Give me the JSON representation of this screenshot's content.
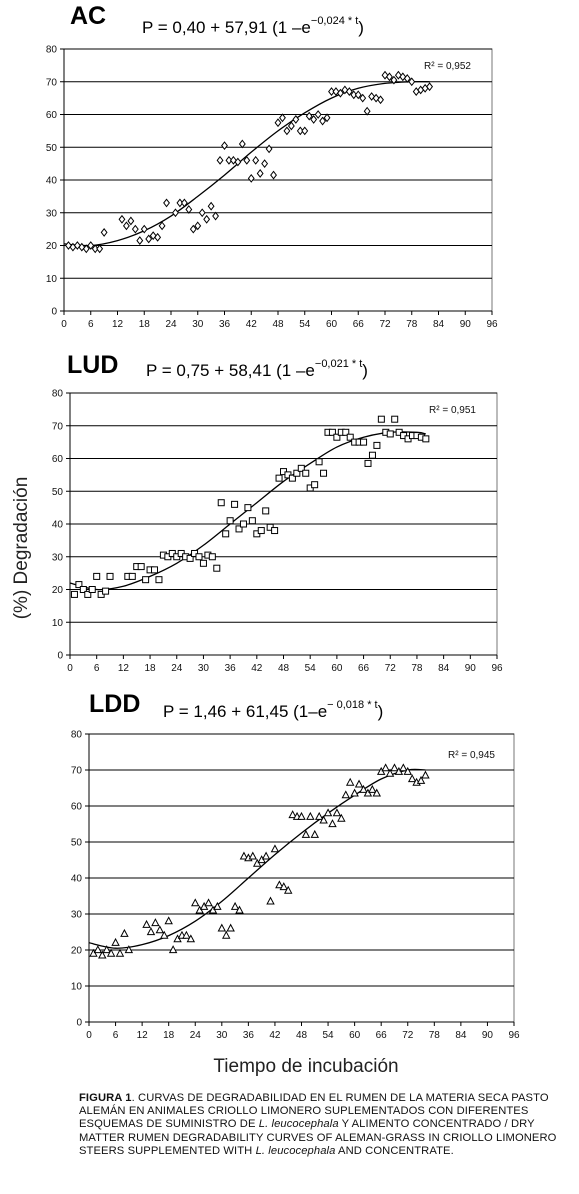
{
  "y_axis_label": "(%) Degradación",
  "x_axis_label": "Tiempo de incubación",
  "caption": {
    "label": "FIGURA 1",
    "part1": ". CURVAS DE DEGRADABILIDAD EN EL RUMEN DE LA MATERIA SECA PASTO ALEMÁN EN ANIMALES CRIOLLO LIMONERO SUPLEMENTADOS CON DIFERENTES ESQUEMAS DE SUMINISTRO DE ",
    "species1": "L. leucocephala",
    "part2": " Y ALIMENTO CONCENTRADO / DRY MATTER RUMEN DEGRADABILITY CURVES OF ALEMAN-GRASS IN CRIOLLO LIMONERO STEERS  SUPPLEMENTED WITH ",
    "species2": "L. leucocephala",
    "part3": " AND CONCENTRATE."
  },
  "chart_data": [
    {
      "type": "scatter",
      "title": "AC",
      "equation": {
        "prefix": "P = 0,40 + 57,91 (1 –e",
        "exponent": "−0,024 * t",
        "suffix": ")"
      },
      "r2_label": "R² = 0,952",
      "marker": "diamond",
      "xlim": [
        0,
        96
      ],
      "ylim": [
        0,
        80
      ],
      "x_ticks": [
        0,
        6,
        12,
        18,
        24,
        30,
        36,
        42,
        48,
        54,
        60,
        66,
        72,
        78,
        84,
        90,
        96
      ],
      "y_ticks": [
        0,
        10,
        20,
        30,
        40,
        50,
        60,
        70,
        80
      ],
      "grid": "horizontal",
      "fit_curve": {
        "x": [
          0,
          6,
          12,
          18,
          24,
          30,
          36,
          42,
          48,
          54,
          60,
          66,
          72,
          78,
          82
        ],
        "y": [
          20.5,
          20,
          21.5,
          24.5,
          29,
          35,
          41.5,
          48.5,
          55,
          60.5,
          65,
          68,
          69.5,
          70,
          70
        ]
      },
      "points": {
        "x": [
          1,
          2,
          3,
          4,
          5,
          6,
          7,
          8,
          9,
          13,
          14,
          15,
          16,
          17,
          18,
          19,
          20,
          21,
          22,
          23,
          25,
          26,
          27,
          28,
          29,
          30,
          31,
          32,
          33,
          34,
          35,
          36,
          37,
          38,
          39,
          40,
          41,
          42,
          43,
          44,
          45,
          46,
          47,
          48,
          49,
          50,
          51,
          52,
          53,
          54,
          55,
          56,
          57,
          58,
          59,
          60,
          61,
          62,
          63,
          64,
          65,
          66,
          67,
          68,
          69,
          70,
          71,
          72,
          73,
          74,
          75,
          76,
          77,
          78,
          79,
          80,
          81,
          82
        ],
        "y": [
          20,
          19.5,
          20,
          19.5,
          19,
          20,
          19,
          19,
          24,
          28,
          26,
          27.5,
          25,
          21.5,
          25,
          22,
          23,
          22.5,
          26,
          33,
          30,
          33,
          33,
          31,
          25,
          26,
          30,
          28,
          32,
          29,
          46,
          50.5,
          46,
          46,
          45.5,
          51,
          46,
          40.5,
          46,
          42,
          45,
          49.5,
          41.5,
          57.5,
          59,
          55,
          56.5,
          58.5,
          55,
          55,
          59.5,
          58.5,
          60,
          58,
          59,
          67,
          67,
          66.5,
          67.5,
          67,
          66,
          66,
          65,
          61,
          65.5,
          65,
          64.5,
          72,
          71.5,
          70.5,
          72,
          71.5,
          71,
          70,
          67,
          67.5,
          68,
          68.5
        ]
      }
    },
    {
      "type": "scatter",
      "title": "LUD",
      "equation": {
        "prefix": "P = 0,75 + 58,41 (1 –e",
        "exponent": "−0,021 * t",
        "suffix": ")"
      },
      "r2_label": "R² = 0,951",
      "marker": "square",
      "xlim": [
        0,
        96
      ],
      "ylim": [
        0,
        80
      ],
      "x_ticks": [
        0,
        6,
        12,
        18,
        24,
        30,
        36,
        42,
        48,
        54,
        60,
        66,
        72,
        78,
        84,
        90,
        96
      ],
      "y_ticks": [
        0,
        10,
        20,
        30,
        40,
        50,
        60,
        70,
        80
      ],
      "grid": "horizontal",
      "fit_curve": {
        "x": [
          0,
          6,
          12,
          18,
          24,
          30,
          36,
          42,
          48,
          54,
          60,
          66,
          72,
          78,
          80
        ],
        "y": [
          22,
          20,
          21,
          24,
          28,
          33.5,
          40,
          46.5,
          53,
          58.5,
          63.5,
          66.5,
          68,
          68,
          67.5
        ]
      },
      "points": {
        "x": [
          1,
          2,
          3,
          4,
          5,
          6,
          7,
          8,
          9,
          13,
          14,
          15,
          16,
          17,
          18,
          19,
          20,
          21,
          22,
          23,
          24,
          25,
          26,
          27,
          28,
          29,
          30,
          31,
          32,
          33,
          34,
          35,
          36,
          37,
          38,
          39,
          40,
          41,
          42,
          43,
          44,
          45,
          46,
          47,
          48,
          49,
          50,
          51,
          52,
          53,
          54,
          55,
          56,
          57,
          58,
          59,
          60,
          61,
          62,
          63,
          64,
          65,
          66,
          67,
          68,
          69,
          70,
          71,
          72,
          73,
          74,
          75,
          76,
          77,
          78,
          79,
          80
        ],
        "y": [
          18.5,
          21.5,
          20,
          18.5,
          20,
          24,
          18.5,
          19.5,
          24,
          24,
          24,
          27,
          27,
          23,
          26,
          26,
          23,
          30.5,
          30,
          31,
          30,
          31,
          30,
          29.5,
          31,
          30,
          28,
          30.5,
          30,
          26.5,
          46.5,
          37,
          41,
          46,
          38.5,
          40,
          45,
          41,
          37,
          38,
          44,
          39,
          38,
          54,
          56,
          55,
          54,
          55.5,
          57,
          55.5,
          51,
          52,
          59,
          55.5,
          68,
          68,
          66.5,
          68,
          68,
          66.5,
          65,
          65,
          65,
          58.5,
          61,
          64,
          72,
          68,
          67.5,
          72,
          68,
          67,
          66,
          67,
          67,
          66.5,
          66
        ]
      }
    },
    {
      "type": "scatter",
      "title": "LDD",
      "equation": {
        "prefix": "P = 1,46 + 61,45 (1–e",
        "exponent": "− 0,018 * t",
        "suffix": ")"
      },
      "r2_label": "R² = 0,945",
      "marker": "triangle",
      "xlim": [
        0,
        96
      ],
      "ylim": [
        0,
        80
      ],
      "x_ticks": [
        0,
        6,
        12,
        18,
        24,
        30,
        36,
        42,
        48,
        54,
        60,
        66,
        72,
        78,
        84,
        90,
        96
      ],
      "y_ticks": [
        0,
        10,
        20,
        30,
        40,
        50,
        60,
        70,
        80
      ],
      "grid": "horizontal",
      "fit_curve": {
        "x": [
          0,
          6,
          12,
          18,
          24,
          30,
          36,
          42,
          48,
          54,
          60,
          66,
          72,
          76
        ],
        "y": [
          22,
          20.5,
          21.5,
          24,
          28,
          33.5,
          40,
          46.5,
          52.5,
          58,
          63,
          67.5,
          70,
          70
        ]
      },
      "points": {
        "x": [
          1,
          2,
          3,
          4,
          5,
          6,
          7,
          8,
          9,
          13,
          14,
          15,
          16,
          17,
          18,
          19,
          20,
          21,
          22,
          23,
          24,
          25,
          26,
          27,
          28,
          29,
          30,
          31,
          32,
          33,
          34,
          35,
          36,
          37,
          38,
          39,
          40,
          41,
          42,
          43,
          44,
          45,
          46,
          47,
          48,
          49,
          50,
          51,
          52,
          53,
          54,
          55,
          56,
          57,
          58,
          59,
          60,
          61,
          62,
          63,
          64,
          65,
          66,
          67,
          68,
          69,
          70,
          71,
          72,
          73,
          74,
          75,
          76
        ],
        "y": [
          19,
          20,
          18.5,
          20,
          19,
          22,
          19,
          24.5,
          20,
          27,
          25,
          27.5,
          25.5,
          24,
          28,
          20,
          23,
          24,
          24,
          23,
          33,
          31,
          32,
          33,
          31,
          32,
          26,
          24,
          26,
          32,
          31,
          46,
          45.5,
          46,
          44,
          45,
          46,
          33.5,
          48,
          38,
          37.5,
          36.5,
          57.5,
          57,
          57,
          52,
          57,
          52,
          57,
          56,
          58,
          55,
          58,
          56.5,
          63,
          66.5,
          63.5,
          66,
          64.5,
          63.5,
          64.5,
          63.5,
          69.5,
          70.5,
          69,
          70.5,
          69.5,
          70.5,
          69.5,
          67.5,
          66.5,
          67,
          68.5
        ]
      }
    }
  ]
}
